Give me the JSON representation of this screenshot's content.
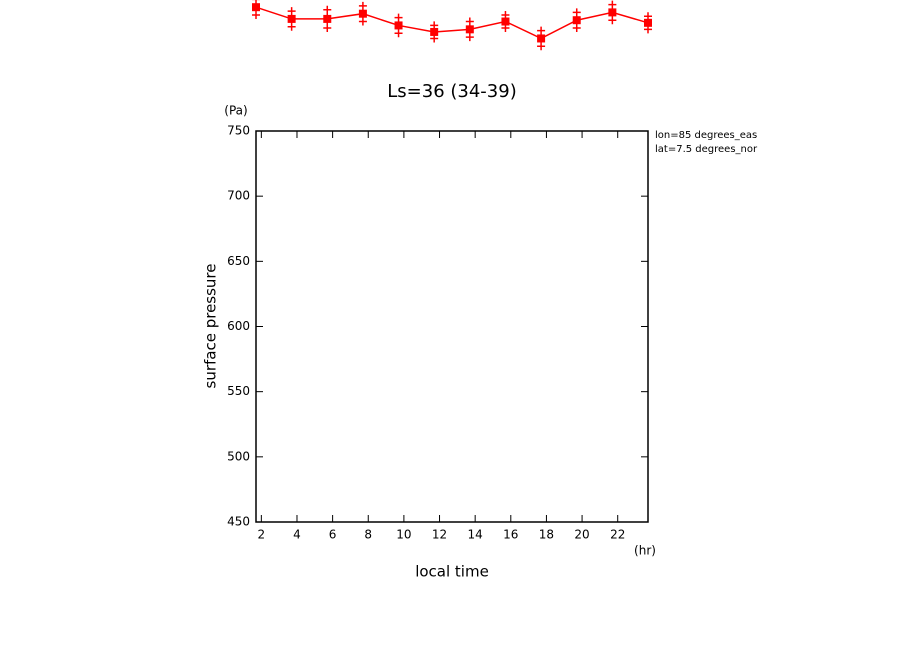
{
  "chart_data": {
    "type": "line",
    "title": "Ls=36 (34-39)",
    "x_label": "local time",
    "x_unit": "(hr)",
    "y_label": "surface pressure",
    "y_unit": "(Pa)",
    "annotations": [
      "lon=85 degrees_eas",
      "lat=7.5 degrees_nor"
    ],
    "x": [
      1.7,
      3.7,
      5.7,
      7.7,
      9.7,
      11.7,
      13.7,
      15.7,
      17.7,
      19.7,
      21.7,
      23.7
    ],
    "series": [
      {
        "color": "#ff0000",
        "values": [
          845,
          836,
          836,
          840,
          831,
          826,
          828,
          834,
          821,
          835,
          841,
          833
        ],
        "errors": [
          6,
          6,
          7,
          6,
          6,
          5,
          6,
          5,
          6,
          6,
          6,
          5
        ]
      }
    ],
    "xlim": [
      1.7,
      23.7
    ],
    "xticks": [
      2,
      4,
      6,
      8,
      10,
      12,
      14,
      16,
      18,
      20,
      22
    ],
    "ylim": [
      450,
      750
    ],
    "yticks": [
      450,
      500,
      550,
      600,
      650,
      700,
      750
    ]
  }
}
